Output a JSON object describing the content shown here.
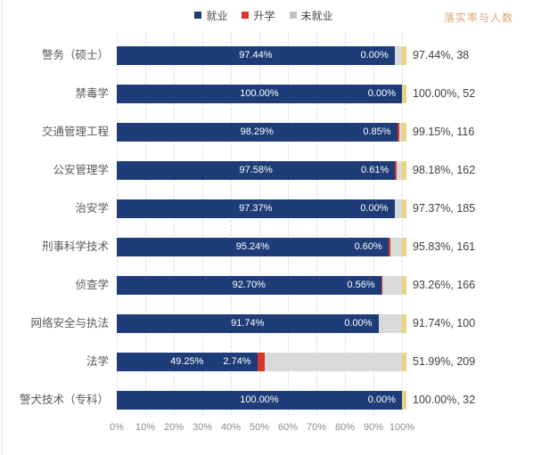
{
  "legend": {
    "items": [
      {
        "label": "就业",
        "color": "#1E3C78"
      },
      {
        "label": "升学",
        "color": "#D8372A"
      },
      {
        "label": "未就业",
        "color": "#C2C2C2"
      }
    ]
  },
  "right_header": {
    "label": "落实率与人数",
    "color": "#DCA878"
  },
  "chart_data": {
    "type": "bar",
    "orientation": "horizontal",
    "stacked": true,
    "title": "",
    "xlabel": "",
    "ylabel": "",
    "x_axis": {
      "ticks": [
        "0%",
        "10%",
        "20%",
        "30%",
        "40%",
        "50%",
        "60%",
        "70%",
        "80%",
        "90%",
        "100%"
      ],
      "range": [
        0,
        100
      ],
      "grid": "dashed-vertical"
    },
    "categories": [
      "警务（硕士）",
      "禁毒学",
      "交通管理工程",
      "公安管理学",
      "治安学",
      "刑事科学技术",
      "侦查学",
      "网络安全与执法",
      "法学",
      "警犬技术（专科）"
    ],
    "series": [
      {
        "name": "就业",
        "color": "#1E3C78",
        "values": [
          97.44,
          100.0,
          98.29,
          97.58,
          97.37,
          95.24,
          92.7,
          91.74,
          49.25,
          100.0
        ]
      },
      {
        "name": "升学",
        "color": "#D8372A",
        "values": [
          0.0,
          0.0,
          0.85,
          0.61,
          0.0,
          0.6,
          0.56,
          0.0,
          2.74,
          0.0
        ]
      },
      {
        "name": "未就业",
        "color": "#D9D9D9",
        "values": [
          2.56,
          0.0,
          0.86,
          1.81,
          2.63,
          4.16,
          6.74,
          8.26,
          48.01,
          0.0
        ]
      }
    ],
    "employment_labels": [
      "97.44%",
      "100.00%",
      "98.29%",
      "97.58%",
      "97.37%",
      "95.24%",
      "92.70%",
      "91.74%",
      "49.25%",
      "100.00%"
    ],
    "further_study_labels": [
      "0.00%",
      "0.00%",
      "0.85%",
      "0.61%",
      "0.00%",
      "0.60%",
      "0.56%",
      "0.00%",
      "2.74%",
      "0.00%"
    ],
    "value_labels": [
      "97.44%, 38",
      "100.00%, 52",
      "99.15%, 116",
      "98.18%, 162",
      "97.37%, 185",
      "95.83%, 161",
      "93.26%, 166",
      "91.74%, 100",
      "51.99%, 209",
      "100.00%, 32"
    ],
    "end_cap_color": "#E8D382"
  }
}
